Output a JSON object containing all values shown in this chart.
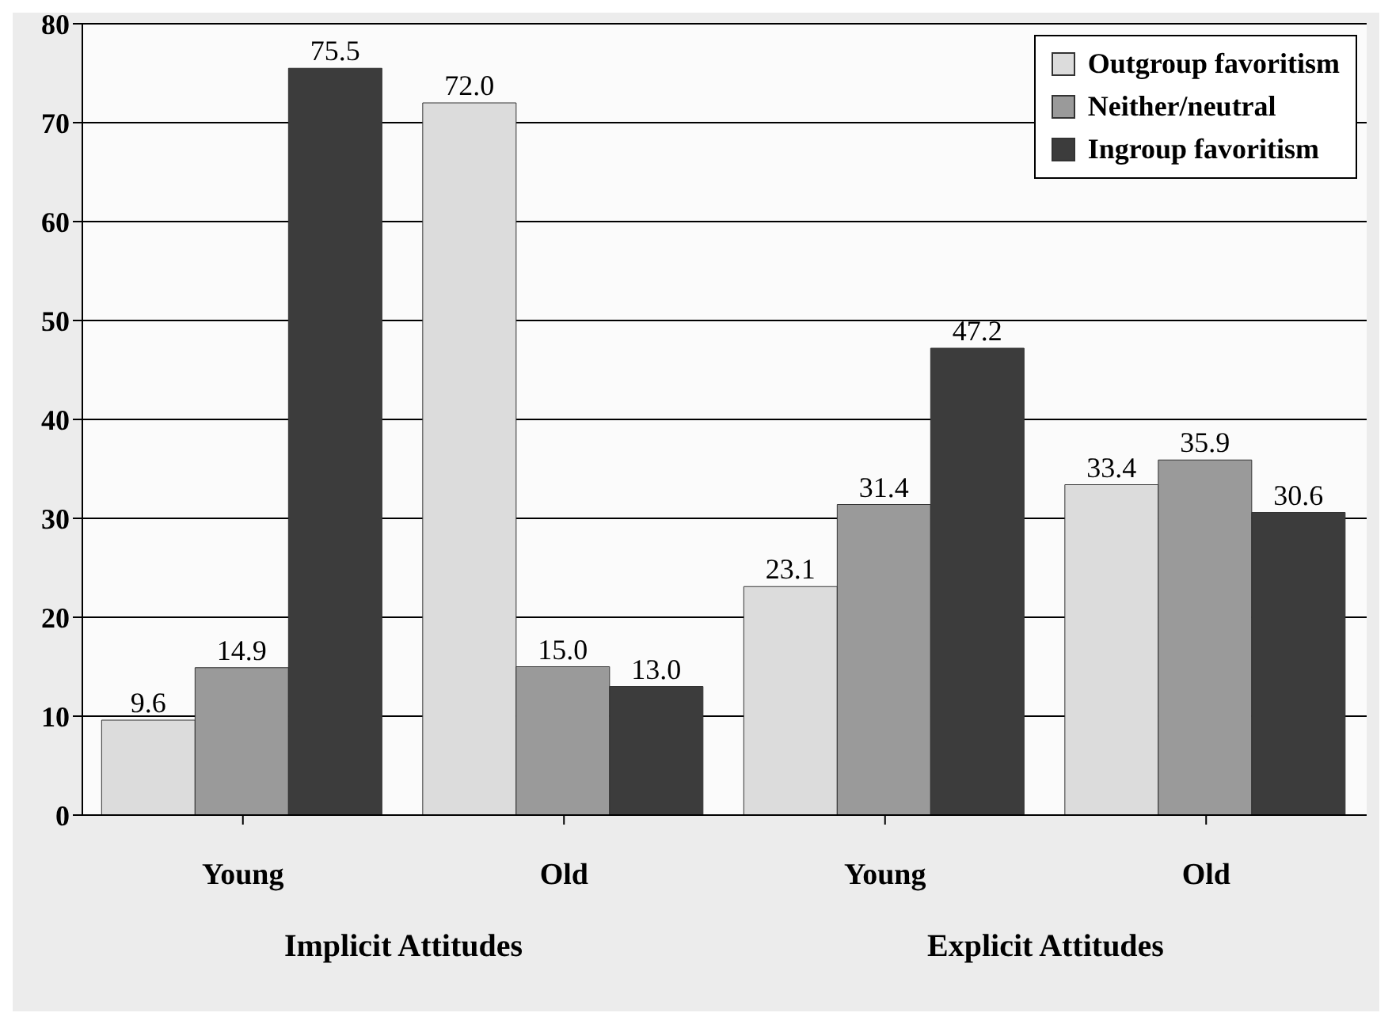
{
  "chart_data": {
    "type": "bar",
    "categories": [
      "Young",
      "Old",
      "Young",
      "Old"
    ],
    "series": [
      {
        "name": "Outgroup favoritism",
        "color": "#dcdcdc",
        "values": [
          9.6,
          72.0,
          23.1,
          33.4
        ],
        "value_labels": [
          "9.6",
          "72.0",
          "23.1",
          "33.4"
        ]
      },
      {
        "name": "Neither/neutral",
        "color": "#9a9a9a",
        "values": [
          14.9,
          15.0,
          31.4,
          35.9
        ],
        "value_labels": [
          "14.9",
          "15.0",
          "31.4",
          "35.9"
        ]
      },
      {
        "name": "Ingroup favoritism",
        "color": "#3c3c3c",
        "values": [
          75.5,
          13.0,
          47.2,
          30.6
        ],
        "value_labels": [
          "75.5",
          "13.0",
          "47.2",
          "30.6"
        ]
      }
    ],
    "ylim": [
      0,
      80
    ],
    "yticks": [
      0,
      10,
      20,
      30,
      40,
      50,
      60,
      70,
      80
    ],
    "grid": "y",
    "legend": "top right",
    "annotations": [
      "Implicit Attitudes",
      "Explicit Attitudes"
    ]
  }
}
